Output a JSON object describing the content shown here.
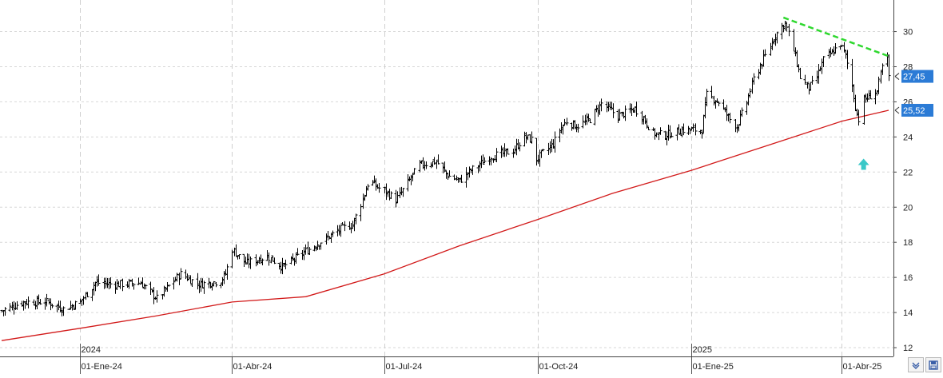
{
  "chart_data": {
    "type": "candlestick",
    "y_axis": {
      "ylim": [
        11.5,
        31.8
      ],
      "ticks": [
        "12",
        "14",
        "16",
        "18",
        "20",
        "22",
        "24",
        "26",
        "28",
        "30"
      ],
      "position": "right",
      "grid": true
    },
    "x_axis": {
      "date_range": [
        "2023-11-15",
        "2025-04-29"
      ],
      "month_ticks": [
        "01-Ene-24",
        "01-Abr-24",
        "01-Jul-24",
        "01-Oct-24",
        "01-Ene-25",
        "01-Abr-25"
      ],
      "month_tick_dates": [
        "2024-01-01",
        "2024-04-01",
        "2024-07-01",
        "2024-10-01",
        "2025-01-01",
        "2025-04-01"
      ],
      "year_ticks": [
        "2024",
        "2025"
      ],
      "year_tick_dates": [
        "2024-01-01",
        "2025-01-01"
      ],
      "grid": true
    },
    "series": [
      {
        "type": "ohlc",
        "color": "#000000",
        "approximate": true,
        "close_path": [
          [
            "2023-11-15",
            14.1
          ],
          [
            "2023-11-28",
            14.6
          ],
          [
            "2023-12-12",
            14.6
          ],
          [
            "2023-12-22",
            14.2
          ],
          [
            "2024-01-01",
            14.6
          ],
          [
            "2024-01-10",
            15.7
          ],
          [
            "2024-01-23",
            15.6
          ],
          [
            "2024-02-06",
            15.7
          ],
          [
            "2024-02-16",
            14.8
          ],
          [
            "2024-03-01",
            16.2
          ],
          [
            "2024-03-12",
            15.6
          ],
          [
            "2024-03-25",
            15.8
          ],
          [
            "2024-03-28",
            16.2
          ],
          [
            "2024-04-01",
            17.6
          ],
          [
            "2024-04-09",
            16.8
          ],
          [
            "2024-04-22",
            17.2
          ],
          [
            "2024-05-01",
            16.6
          ],
          [
            "2024-05-20",
            17.8
          ],
          [
            "2024-06-06",
            18.8
          ],
          [
            "2024-06-12",
            19.0
          ],
          [
            "2024-06-17",
            20.2
          ],
          [
            "2024-06-22",
            21.6
          ],
          [
            "2024-06-26",
            21.2
          ],
          [
            "2024-07-03",
            20.8
          ],
          [
            "2024-07-08",
            20.4
          ],
          [
            "2024-07-22",
            22.4
          ],
          [
            "2024-08-01",
            22.6
          ],
          [
            "2024-08-08",
            21.8
          ],
          [
            "2024-08-15",
            21.5
          ],
          [
            "2024-08-22",
            22.1
          ],
          [
            "2024-09-03",
            22.9
          ],
          [
            "2024-09-16",
            23.2
          ],
          [
            "2024-09-23",
            24.0
          ],
          [
            "2024-09-28",
            23.8
          ],
          [
            "2024-09-30",
            22.7
          ],
          [
            "2024-10-03",
            23.0
          ],
          [
            "2024-10-10",
            23.6
          ],
          [
            "2024-10-14",
            24.4
          ],
          [
            "2024-10-18",
            24.9
          ],
          [
            "2024-10-24",
            24.6
          ],
          [
            "2024-11-01",
            25.0
          ],
          [
            "2024-11-08",
            25.9
          ],
          [
            "2024-11-18",
            25.2
          ],
          [
            "2024-11-28",
            25.6
          ],
          [
            "2024-12-02",
            25.2
          ],
          [
            "2024-12-09",
            24.2
          ],
          [
            "2024-12-16",
            24.1
          ],
          [
            "2024-12-26",
            24.4
          ],
          [
            "2025-01-01",
            24.4
          ],
          [
            "2025-01-07",
            24.4
          ],
          [
            "2025-01-10",
            26.4
          ],
          [
            "2025-01-17",
            26.0
          ],
          [
            "2025-01-24",
            25.0
          ],
          [
            "2025-01-28",
            24.6
          ],
          [
            "2025-02-03",
            26.0
          ],
          [
            "2025-02-07",
            27.3
          ],
          [
            "2025-02-14",
            28.6
          ],
          [
            "2025-02-20",
            29.8
          ],
          [
            "2025-02-26",
            30.5
          ],
          [
            "2025-03-04",
            28.6
          ],
          [
            "2025-03-07",
            27.4
          ],
          [
            "2025-03-12",
            26.8
          ],
          [
            "2025-03-16",
            27.2
          ],
          [
            "2025-03-21",
            28.4
          ],
          [
            "2025-03-26",
            28.8
          ],
          [
            "2025-03-31",
            29.3
          ],
          [
            "2025-04-03",
            28.6
          ],
          [
            "2025-04-07",
            26.9
          ],
          [
            "2025-04-09",
            25.7
          ],
          [
            "2025-04-11",
            25.0
          ],
          [
            "2025-04-14",
            26.1
          ],
          [
            "2025-04-22",
            26.6
          ],
          [
            "2025-04-25",
            28.0
          ],
          [
            "2025-04-28",
            28.4
          ],
          [
            "2025-04-29",
            27.45
          ]
        ]
      },
      {
        "type": "line",
        "color": "#d21a1a",
        "points": [
          [
            "2023-11-15",
            12.4
          ],
          [
            "2024-01-01",
            13.1
          ],
          [
            "2024-02-15",
            13.8
          ],
          [
            "2024-04-01",
            14.6
          ],
          [
            "2024-05-15",
            14.9
          ],
          [
            "2024-07-01",
            16.2
          ],
          [
            "2024-08-15",
            17.8
          ],
          [
            "2024-10-01",
            19.3
          ],
          [
            "2024-11-15",
            20.8
          ],
          [
            "2025-01-01",
            22.1
          ],
          [
            "2025-02-15",
            23.5
          ],
          [
            "2025-04-01",
            24.9
          ],
          [
            "2025-04-29",
            25.52
          ]
        ]
      },
      {
        "type": "trendline",
        "color": "#2ed82e",
        "dashed": true,
        "points": [
          [
            "2025-02-25",
            30.8
          ],
          [
            "2025-04-29",
            28.6
          ]
        ]
      }
    ],
    "price_labels": [
      {
        "text": "27,45",
        "value": 27.45,
        "color": "#2b7bd6"
      },
      {
        "text": "25,52",
        "value": 25.52,
        "color": "#2b7bd6"
      }
    ],
    "annotations": [
      {
        "type": "arrow-up",
        "date": "2025-04-14",
        "value": 22.4,
        "color": "#39c8c8"
      }
    ]
  },
  "toolbar": {
    "zoom_icon": "zoom-arrows-icon",
    "save_icon": "save-icon",
    "accent_color": "#3a5fa8"
  }
}
